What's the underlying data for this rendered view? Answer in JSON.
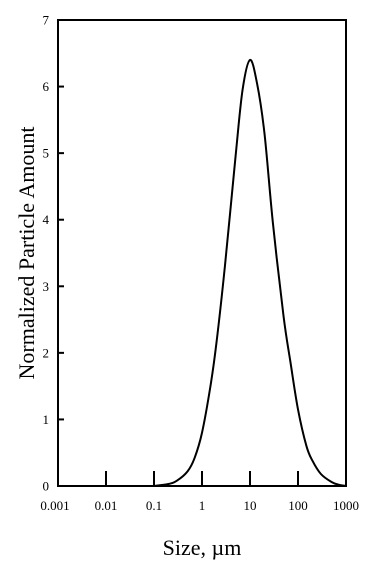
{
  "chart_data": {
    "type": "line",
    "xscale": "log",
    "xlim": [
      0.001,
      1000
    ],
    "ylim": [
      0,
      7
    ],
    "xlabel": "Size, µm",
    "ylabel": "Normalized Particle Amount",
    "grid": false,
    "x_ticks": [
      {
        "value": 0.001,
        "label": "0.001"
      },
      {
        "value": 0.01,
        "label": "0.01"
      },
      {
        "value": 0.1,
        "label": "0.1"
      },
      {
        "value": 1,
        "label": "1"
      },
      {
        "value": 10,
        "label": "10"
      },
      {
        "value": 100,
        "label": "100"
      },
      {
        "value": 1000,
        "label": "1000"
      }
    ],
    "y_ticks": [
      {
        "value": 0,
        "label": "0"
      },
      {
        "value": 1,
        "label": "1"
      },
      {
        "value": 2,
        "label": "2"
      },
      {
        "value": 3,
        "label": "3"
      },
      {
        "value": 4,
        "label": "4"
      },
      {
        "value": 5,
        "label": "5"
      },
      {
        "value": 6,
        "label": "6"
      },
      {
        "value": 7,
        "label": "7"
      }
    ],
    "series": [
      {
        "color": "#000000",
        "x": [
          0.1,
          0.2,
          0.3,
          0.5,
          0.7,
          1,
          1.5,
          2,
          3,
          5,
          7,
          10,
          14,
          20,
          30,
          50,
          70,
          100,
          150,
          200,
          300,
          500,
          700,
          1000
        ],
        "y": [
          0.0,
          0.03,
          0.08,
          0.22,
          0.42,
          0.8,
          1.5,
          2.15,
          3.3,
          4.95,
          5.95,
          6.4,
          6.05,
          5.3,
          3.95,
          2.55,
          1.85,
          1.15,
          0.6,
          0.38,
          0.18,
          0.06,
          0.02,
          0.0
        ]
      }
    ]
  }
}
